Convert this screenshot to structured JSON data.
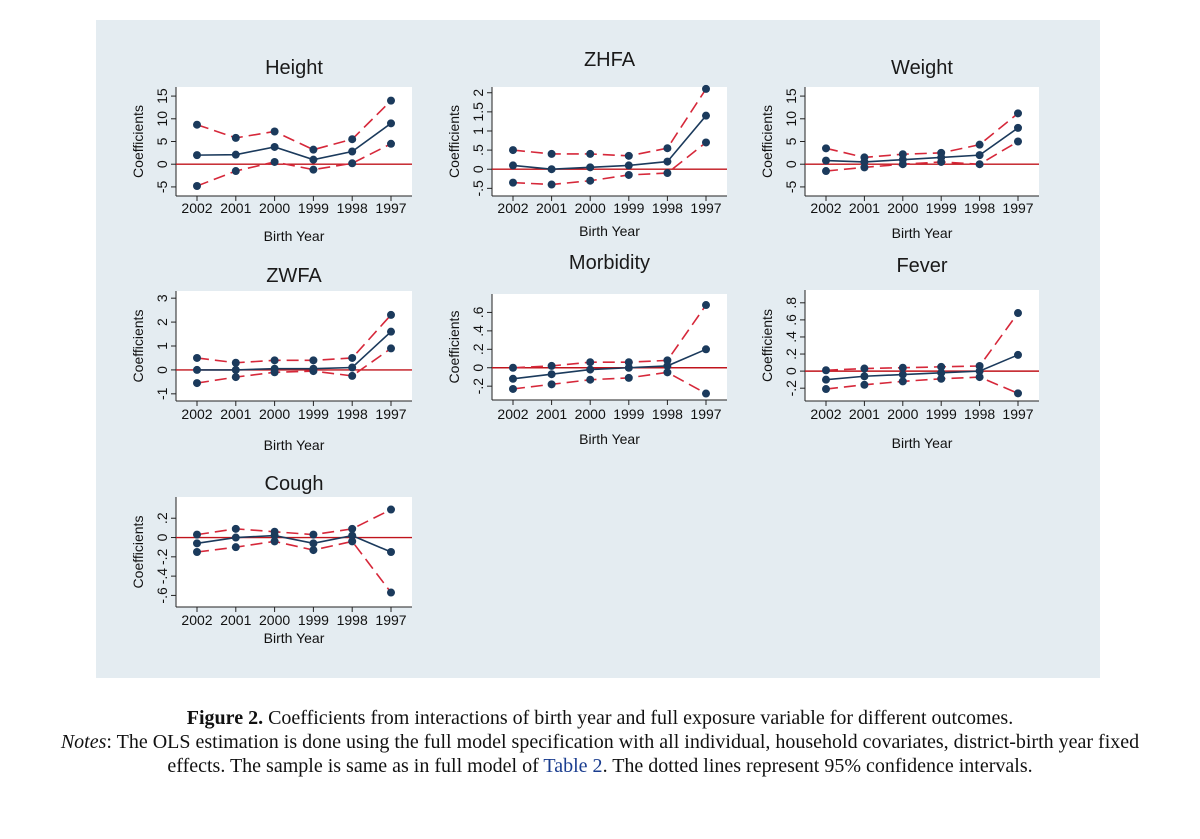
{
  "colors": {
    "panel_bg": "#e4ecf1",
    "plot_bg": "#ffffff",
    "point_line": "#1b3a5c",
    "ci_line": "#d6283a",
    "zero_line": "#c0141c"
  },
  "caption": {
    "figure_label": "Figure 2.",
    "figure_text": " Coefficients from interactions of birth year and full exposure variable for different outcomes.",
    "notes_label": "Notes",
    "notes_text_1": ": The OLS estimation is done using the full model specification with all individual, household covariates, district-birth year fixed effects. The sample is same as in full model of ",
    "notes_link": "Table 2",
    "notes_text_2": ". The dotted lines represent 95% confidence intervals."
  },
  "chart_data": [
    {
      "type": "line",
      "title": "Height",
      "xlabel": "Birth Year",
      "ylabel": "Coefficients",
      "categories": [
        "2002",
        "2001",
        "2000",
        "1999",
        "1998",
        "1997"
      ],
      "yticks": [
        -5,
        0,
        5,
        10,
        15
      ],
      "ytick_labels": [
        "-5",
        "0",
        "5",
        "10",
        "15"
      ],
      "ylim": [
        -7,
        17
      ],
      "series": [
        {
          "name": "Coefficient",
          "values": [
            2,
            2.1,
            3.8,
            1,
            2.8,
            9
          ]
        },
        {
          "name": "Upper 95% CI",
          "values": [
            8.7,
            5.8,
            7.2,
            3.2,
            5.5,
            14
          ]
        },
        {
          "name": "Lower 95% CI",
          "values": [
            -4.8,
            -1.5,
            0.5,
            -1.2,
            0.2,
            4.5
          ]
        }
      ]
    },
    {
      "type": "line",
      "title": "ZHFA",
      "xlabel": "Birth Year",
      "ylabel": "Coefficients",
      "categories": [
        "2002",
        "2001",
        "2000",
        "1999",
        "1998",
        "1997"
      ],
      "yticks": [
        -0.5,
        0,
        0.5,
        1,
        1.5,
        2
      ],
      "ytick_labels": [
        "-.5",
        "0",
        ".5",
        "1",
        "1.5",
        "2"
      ],
      "ylim": [
        -0.7,
        2.15
      ],
      "series": [
        {
          "name": "Coefficient",
          "values": [
            0.1,
            0,
            0.05,
            0.1,
            0.2,
            1.4
          ]
        },
        {
          "name": "Upper 95% CI",
          "values": [
            0.5,
            0.4,
            0.4,
            0.35,
            0.55,
            2.1
          ]
        },
        {
          "name": "Lower 95% CI",
          "values": [
            -0.35,
            -0.4,
            -0.3,
            -0.15,
            -0.1,
            0.7
          ]
        }
      ]
    },
    {
      "type": "line",
      "title": "Weight",
      "xlabel": "Birth Year",
      "ylabel": "Coefficients",
      "categories": [
        "2002",
        "2001",
        "2000",
        "1999",
        "1998",
        "1997"
      ],
      "yticks": [
        -5,
        0,
        5,
        10,
        15
      ],
      "ytick_labels": [
        "-5",
        "0",
        "5",
        "10",
        "15"
      ],
      "ylim": [
        -7,
        17
      ],
      "series": [
        {
          "name": "Coefficient",
          "values": [
            0.8,
            0.5,
            1,
            1.5,
            2,
            8
          ]
        },
        {
          "name": "Upper 95% CI",
          "values": [
            3.5,
            1.5,
            2.2,
            2.5,
            4.3,
            11.2
          ]
        },
        {
          "name": "Lower 95% CI",
          "values": [
            -1.5,
            -0.7,
            0,
            0.5,
            0,
            5
          ]
        }
      ]
    },
    {
      "type": "line",
      "title": "ZWFA",
      "xlabel": "Birth Year",
      "ylabel": "Coefficients",
      "categories": [
        "2002",
        "2001",
        "2000",
        "1999",
        "1998",
        "1997"
      ],
      "yticks": [
        -1,
        0,
        1,
        2,
        3
      ],
      "ytick_labels": [
        "-1",
        "0",
        "1",
        "2",
        "3"
      ],
      "ylim": [
        -1.3,
        3.3
      ],
      "series": [
        {
          "name": "Coefficient",
          "values": [
            0,
            0,
            0.05,
            0.05,
            0.1,
            1.6
          ]
        },
        {
          "name": "Upper 95% CI",
          "values": [
            0.5,
            0.3,
            0.4,
            0.4,
            0.5,
            2.3
          ]
        },
        {
          "name": "Lower 95% CI",
          "values": [
            -0.55,
            -0.3,
            -0.1,
            -0.05,
            -0.25,
            0.9
          ]
        }
      ]
    },
    {
      "type": "line",
      "title": "Morbidity",
      "xlabel": "Birth Year",
      "ylabel": "Coefficients",
      "categories": [
        "2002",
        "2001",
        "2000",
        "1999",
        "1998",
        "1997"
      ],
      "yticks": [
        -0.2,
        0,
        0.2,
        0.4,
        0.6
      ],
      "ytick_labels": [
        "-.2",
        "0",
        ".2",
        ".4",
        ".6"
      ],
      "ylim": [
        -0.35,
        0.8
      ],
      "series": [
        {
          "name": "Coefficient",
          "values": [
            -0.12,
            -0.07,
            -0.02,
            0,
            0.02,
            0.2
          ]
        },
        {
          "name": "Upper 95% CI",
          "values": [
            0,
            0.02,
            0.06,
            0.06,
            0.08,
            0.68
          ]
        },
        {
          "name": "Lower 95% CI",
          "values": [
            -0.23,
            -0.18,
            -0.13,
            -0.11,
            -0.05,
            -0.28
          ]
        }
      ]
    },
    {
      "type": "line",
      "title": "Fever",
      "xlabel": "Birth Year",
      "ylabel": "Coefficients",
      "categories": [
        "2002",
        "2001",
        "2000",
        "1999",
        "1998",
        "1997"
      ],
      "yticks": [
        -0.2,
        0,
        0.2,
        0.4,
        0.6,
        0.8
      ],
      "ytick_labels": [
        "-.2",
        "0",
        ".2",
        ".4",
        ".6",
        ".8"
      ],
      "ylim": [
        -0.35,
        0.95
      ],
      "series": [
        {
          "name": "Coefficient",
          "values": [
            -0.1,
            -0.06,
            -0.04,
            -0.02,
            0,
            0.19
          ]
        },
        {
          "name": "Upper 95% CI",
          "values": [
            0.01,
            0.03,
            0.04,
            0.05,
            0.06,
            0.68
          ]
        },
        {
          "name": "Lower 95% CI",
          "values": [
            -0.21,
            -0.16,
            -0.12,
            -0.09,
            -0.07,
            -0.26
          ]
        }
      ]
    },
    {
      "type": "line",
      "title": "Cough",
      "xlabel": "Birth Year",
      "ylabel": "Coefficients",
      "categories": [
        "2002",
        "2001",
        "2000",
        "1999",
        "1998",
        "1997"
      ],
      "yticks": [
        -0.6,
        -0.4,
        -0.2,
        0,
        0.2
      ],
      "ytick_labels": [
        "-.6",
        "-.4",
        "-.2",
        "0",
        ".2"
      ],
      "ylim": [
        -0.72,
        0.42
      ],
      "series": [
        {
          "name": "Coefficient",
          "values": [
            -0.06,
            0,
            0.02,
            -0.06,
            0.02,
            -0.15
          ]
        },
        {
          "name": "Upper 95% CI",
          "values": [
            0.03,
            0.09,
            0.06,
            0.03,
            0.09,
            0.29
          ]
        },
        {
          "name": "Lower 95% CI",
          "values": [
            -0.15,
            -0.1,
            -0.04,
            -0.13,
            -0.04,
            -0.57
          ]
        }
      ]
    }
  ]
}
